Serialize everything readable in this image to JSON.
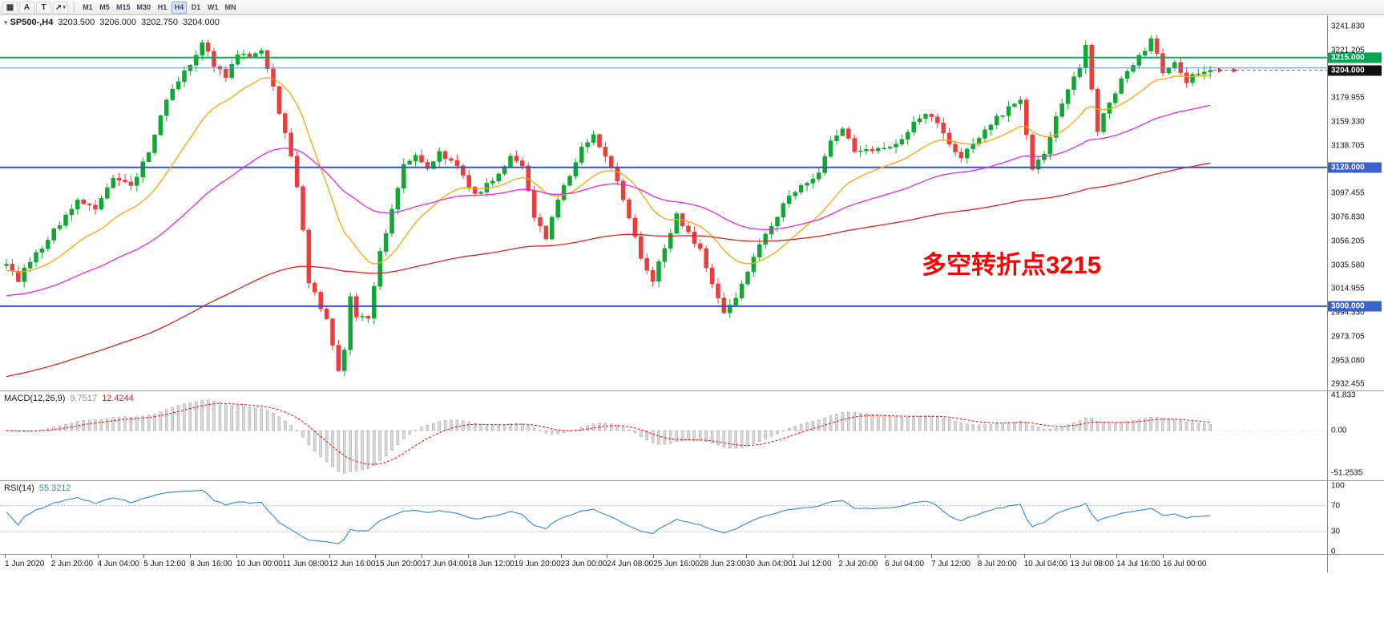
{
  "toolbar": {
    "tools": [
      {
        "name": "chart-objects",
        "glyph": "▦"
      },
      {
        "name": "insert-text",
        "glyph": "A"
      },
      {
        "name": "insert-label",
        "glyph": "T"
      },
      {
        "name": "arrows-tool",
        "glyph": "➚",
        "caret": "▾"
      }
    ],
    "timeframes": [
      "M1",
      "M5",
      "M15",
      "M30",
      "H1",
      "H4",
      "D1",
      "W1",
      "MN"
    ],
    "active_timeframe": "H4"
  },
  "main_chart": {
    "collapse_arrow": "▾",
    "symbol": "SP500-,H4",
    "open": "3203.500",
    "high": "3206.000",
    "low": "3202.750",
    "close": "3204.000",
    "annotation": {
      "text": "多空转折点3215",
      "color": "#ff0000"
    }
  },
  "price_axis": {
    "labels": [
      {
        "text": "3241.830",
        "value": 3241.83
      },
      {
        "text": "3221.205",
        "value": 3221.205
      },
      {
        "text": "3179.955",
        "value": 3179.955
      },
      {
        "text": "3159.330",
        "value": 3159.33
      },
      {
        "text": "3138.705",
        "value": 3138.705
      },
      {
        "text": "3097.455",
        "value": 3097.455
      },
      {
        "text": "3076.830",
        "value": 3076.83
      },
      {
        "text": "3056.205",
        "value": 3056.205
      },
      {
        "text": "3035.580",
        "value": 3035.58
      },
      {
        "text": "3014.955",
        "value": 3014.955
      },
      {
        "text": "2994.330",
        "value": 2994.33
      },
      {
        "text": "2973.705",
        "value": 2973.705
      },
      {
        "text": "2953.080",
        "value": 2953.08
      },
      {
        "text": "2932.455",
        "value": 2932.455
      }
    ],
    "tags": [
      {
        "text": "3215.000",
        "value": 3215.0,
        "bg": "#00a651"
      },
      {
        "text": "3204.000",
        "value": 3204.0,
        "bg": "#111111"
      },
      {
        "text": "3120.000",
        "value": 3120.0,
        "bg": "#3a62c9"
      },
      {
        "text": "3000.000",
        "value": 3000.0,
        "bg": "#3a62c9"
      }
    ]
  },
  "macd_panel": {
    "name": "MACD(12,26,9)",
    "value_main": "9.7517",
    "value_signal": "12.4244",
    "axis": [
      {
        "text": "41.833",
        "value": 41.833
      },
      {
        "text": "0.00",
        "value": 0
      },
      {
        "text": "-51.2535",
        "value": -51.2535
      }
    ]
  },
  "rsi_panel": {
    "name": "RSI(14)",
    "value": "55.3212",
    "axis": [
      {
        "text": "100",
        "value": 100
      },
      {
        "text": "70",
        "value": 70
      },
      {
        "text": "30",
        "value": 30
      },
      {
        "text": "0",
        "value": 0
      }
    ],
    "levels": [
      70,
      30
    ]
  },
  "time_axis": {
    "labels": [
      "1 Jun 2020",
      "2 Jun 20:00",
      "4 Jun 04:00",
      "5 Jun 12:00",
      "8 Jun 16:00",
      "10 Jun 00:00",
      "11 Jun 08:00",
      "12 Jun 16:00",
      "15 Jun 20:00",
      "17 Jun 04:00",
      "18 Jun 12:00",
      "19 Jun 20:00",
      "23 Jun 00:00",
      "24 Jun 08:00",
      "25 Jun 16:00",
      "28 Jun 23:00",
      "30 Jun 04:00",
      "1 Jul 12:00",
      "2 Jul 20:00",
      "6 Jul 04:00",
      "7 Jul 12:00",
      "8 Jul 20:00",
      "10 Jul 04:00",
      "13 Jul 08:00",
      "14 Jul 16:00",
      "16 Jul 00:00"
    ]
  },
  "chart_data": {
    "type": "candlestick",
    "symbol": "SP500",
    "timeframe": "H4",
    "bars": 204,
    "price_range": [
      2929.955,
      3241.83
    ],
    "current_ohlc": {
      "open": 3203.5,
      "high": 3206.0,
      "low": 3202.75,
      "close": 3204.0
    },
    "close_anchors": [
      [
        0,
        3038
      ],
      [
        2,
        3022
      ],
      [
        4,
        3040
      ],
      [
        6,
        3052
      ],
      [
        9,
        3072
      ],
      [
        12,
        3092
      ],
      [
        15,
        3082
      ],
      [
        18,
        3112
      ],
      [
        21,
        3102
      ],
      [
        24,
        3135
      ],
      [
        27,
        3178
      ],
      [
        29,
        3196
      ],
      [
        31,
        3210
      ],
      [
        33,
        3228
      ],
      [
        35,
        3209
      ],
      [
        37,
        3200
      ],
      [
        39,
        3219
      ],
      [
        41,
        3215
      ],
      [
        43,
        3222
      ],
      [
        45,
        3188
      ],
      [
        47,
        3150
      ],
      [
        49,
        3105
      ],
      [
        51,
        3022
      ],
      [
        53,
        3000
      ],
      [
        54,
        2988
      ],
      [
        56,
        2942
      ],
      [
        57,
        2962
      ],
      [
        58,
        3008
      ],
      [
        59,
        2992
      ],
      [
        61,
        2988
      ],
      [
        63,
        3048
      ],
      [
        65,
        3082
      ],
      [
        67,
        3122
      ],
      [
        69,
        3132
      ],
      [
        71,
        3118
      ],
      [
        73,
        3132
      ],
      [
        75,
        3128
      ],
      [
        77,
        3112
      ],
      [
        79,
        3096
      ],
      [
        81,
        3104
      ],
      [
        83,
        3112
      ],
      [
        85,
        3132
      ],
      [
        87,
        3122
      ],
      [
        89,
        3078
      ],
      [
        91,
        3060
      ],
      [
        93,
        3092
      ],
      [
        95,
        3114
      ],
      [
        97,
        3136
      ],
      [
        99,
        3146
      ],
      [
        101,
        3128
      ],
      [
        103,
        3108
      ],
      [
        105,
        3078
      ],
      [
        107,
        3040
      ],
      [
        109,
        3022
      ],
      [
        111,
        3052
      ],
      [
        113,
        3078
      ],
      [
        115,
        3062
      ],
      [
        117,
        3048
      ],
      [
        119,
        3018
      ],
      [
        121,
        2996
      ],
      [
        123,
        3006
      ],
      [
        125,
        3030
      ],
      [
        127,
        3052
      ],
      [
        129,
        3068
      ],
      [
        131,
        3088
      ],
      [
        133,
        3098
      ],
      [
        135,
        3108
      ],
      [
        137,
        3116
      ],
      [
        139,
        3142
      ],
      [
        141,
        3154
      ],
      [
        143,
        3132
      ],
      [
        145,
        3136
      ],
      [
        147,
        3134
      ],
      [
        149,
        3138
      ],
      [
        151,
        3146
      ],
      [
        153,
        3158
      ],
      [
        155,
        3168
      ],
      [
        157,
        3158
      ],
      [
        159,
        3142
      ],
      [
        161,
        3128
      ],
      [
        163,
        3142
      ],
      [
        165,
        3152
      ],
      [
        167,
        3162
      ],
      [
        169,
        3172
      ],
      [
        171,
        3178
      ],
      [
        173,
        3120
      ],
      [
        175,
        3132
      ],
      [
        177,
        3162
      ],
      [
        179,
        3186
      ],
      [
        181,
        3206
      ],
      [
        182,
        3226
      ],
      [
        184,
        3152
      ],
      [
        185,
        3166
      ],
      [
        187,
        3186
      ],
      [
        189,
        3204
      ],
      [
        191,
        3216
      ],
      [
        193,
        3230
      ],
      [
        195,
        3204
      ],
      [
        197,
        3212
      ],
      [
        199,
        3194
      ],
      [
        201,
        3202
      ],
      [
        203,
        3204
      ]
    ],
    "key_levels": [
      {
        "value": 3215.0,
        "color": "#00b050",
        "width": 2
      },
      {
        "value": 3206.0,
        "color": "#5b8fd0",
        "width": 1
      },
      {
        "value": 3120.0,
        "color": "#2f55cc",
        "width": 2
      },
      {
        "value": 3000.0,
        "color": "#2f55cc",
        "width": 2
      }
    ],
    "moving_averages": [
      {
        "name": "ma-fast",
        "period": 18,
        "init": 3030,
        "color": "#ffa500"
      },
      {
        "name": "ma-mid",
        "period": 55,
        "init": 3008,
        "color": "#ee22ee"
      },
      {
        "name": "ma-slow",
        "period": 160,
        "init": 2938,
        "color": "#dd2222"
      }
    ],
    "candle_colors": {
      "up": "#0fa832",
      "down": "#ee3b3b"
    },
    "last_price_color": "#e03131",
    "macd": {
      "fast": 12,
      "slow": 26,
      "signal_period": 9,
      "display_main": 9.7517,
      "display_signal": 12.4244,
      "range": [
        -51.2535,
        41.833
      ],
      "histogram_color": "#d9d9d9",
      "histogram_stroke": "#9e9e9e",
      "signal_color": "#ff0000"
    },
    "rsi": {
      "period": 14,
      "display": 55.3212,
      "color": "#2f86d6",
      "seed_gain": 1.5,
      "seed_loss": 1.0
    }
  }
}
